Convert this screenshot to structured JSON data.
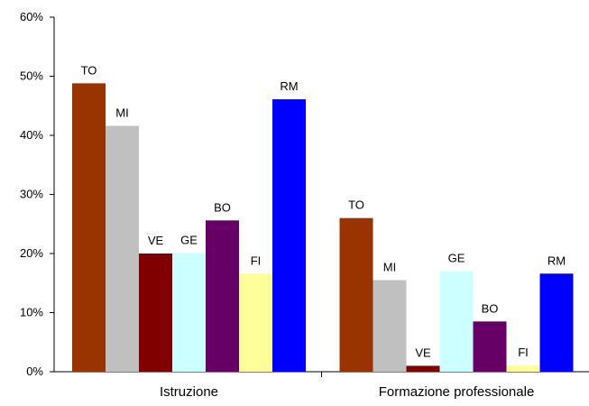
{
  "chart_data": {
    "type": "bar",
    "title": "",
    "xlabel": "",
    "ylabel": "",
    "ylim": [
      0,
      0.6
    ],
    "y_ticks": [
      {
        "value": 0,
        "label": "0%"
      },
      {
        "value": 0.1,
        "label": "10%"
      },
      {
        "value": 0.2,
        "label": "20%"
      },
      {
        "value": 0.3,
        "label": "30%"
      },
      {
        "value": 0.4,
        "label": "40%"
      },
      {
        "value": 0.5,
        "label": "50%"
      },
      {
        "value": 0.6,
        "label": "60%"
      }
    ],
    "grid": false,
    "legend": "none",
    "categories": [
      "Istruzione",
      "Formazione professionale"
    ],
    "series": [
      {
        "name": "TO",
        "color": "#993300",
        "values": [
          0.488,
          0.26
        ]
      },
      {
        "name": "MI",
        "color": "#C0C0C0",
        "values": [
          0.416,
          0.155
        ]
      },
      {
        "name": "VE",
        "color": "#800000",
        "values": [
          0.2,
          0.01
        ]
      },
      {
        "name": "GE",
        "color": "#CCFFFF",
        "values": [
          0.201,
          0.17
        ]
      },
      {
        "name": "BO",
        "color": "#660066",
        "values": [
          0.256,
          0.085
        ]
      },
      {
        "name": "FI",
        "color": "#FFFF99",
        "values": [
          0.166,
          0.011
        ]
      },
      {
        "name": "RM",
        "color": "#0000FF",
        "values": [
          0.461,
          0.166
        ]
      }
    ]
  }
}
